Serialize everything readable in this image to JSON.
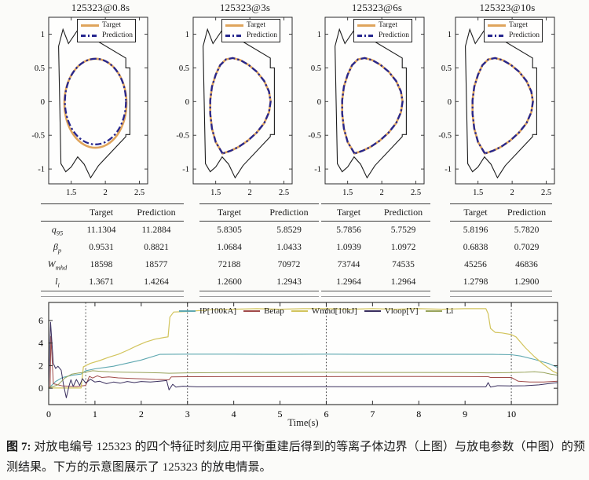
{
  "figure": {
    "caption_prefix": "图 7:",
    "caption_text": " 对放电编号 125323 的四个特征时刻应用平衡重建后得到的等离子体边界（上图）与放电参数（中图）的预测结果。下方的示意图展示了 125323 的放电情景。"
  },
  "colors": {
    "target": "#DFA45C",
    "prediction": "#26268E",
    "vessel": "#1c1c1c",
    "axis": "#2a2a2a",
    "ip": "#5FA8B0",
    "betap": "#A04A48",
    "wmhd": "#D2C45C",
    "vloop": "#3A2F5E",
    "li": "#97A25A"
  },
  "tables": {
    "col_headers": [
      "Target",
      "Prediction"
    ],
    "row_labels": [
      {
        "base": "q",
        "sub": "95"
      },
      {
        "base": "β",
        "sub": "p"
      },
      {
        "base": "W",
        "sub": "mhd"
      },
      {
        "base": "l",
        "sub": "i"
      }
    ],
    "values": [
      {
        "target": [
          "11.1304",
          "0.9531",
          "18598",
          "1.3671"
        ],
        "prediction": [
          "11.2884",
          "0.8821",
          "18577",
          "1.4264"
        ]
      },
      {
        "target": [
          "5.8305",
          "1.0684",
          "72188",
          "1.2600"
        ],
        "prediction": [
          "5.8529",
          "1.0433",
          "70972",
          "1.2943"
        ]
      },
      {
        "target": [
          "5.7856",
          "1.0939",
          "73744",
          "1.2964"
        ],
        "prediction": [
          "5.7529",
          "1.0972",
          "74535",
          "1.2964"
        ]
      },
      {
        "target": [
          "5.8196",
          "0.6838",
          "45256",
          "1.2798"
        ],
        "prediction": [
          "5.7820",
          "0.7029",
          "46836",
          "1.2900"
        ]
      }
    ]
  },
  "chart_data": {
    "equilibria": {
      "type": "line",
      "legend": [
        "Target",
        "Prediction"
      ],
      "axes": {
        "xlim": [
          1.17,
          2.62
        ],
        "ylim": [
          -1.22,
          1.25
        ],
        "x_ticks": [
          "1.5",
          "2",
          "2.5"
        ],
        "x_tick_vals": [
          1.5,
          2.0,
          2.5
        ],
        "y_ticks": [
          "1",
          "0.5",
          "0",
          "-0.5",
          "-1"
        ],
        "y_tick_vals": [
          1,
          0.5,
          0,
          -0.5,
          -1
        ]
      },
      "vessel": [
        [
          1.315,
          0.82
        ],
        [
          1.38,
          1.07
        ],
        [
          1.46,
          0.86
        ],
        [
          1.695,
          1.21
        ],
        [
          1.795,
          0.95
        ],
        [
          2.3,
          0.645
        ],
        [
          2.3,
          0.5
        ],
        [
          2.36,
          0.5
        ],
        [
          2.36,
          -0.49
        ],
        [
          2.3,
          -0.49
        ],
        [
          2.3,
          -0.52
        ],
        [
          1.9,
          -0.95
        ],
        [
          1.785,
          -1.13
        ],
        [
          1.69,
          -0.93
        ],
        [
          1.595,
          -0.82
        ],
        [
          1.5,
          -0.97
        ],
        [
          1.42,
          -1.04
        ],
        [
          1.35,
          -0.92
        ]
      ],
      "shapes": {
        "d": [
          [
            1.6,
            -0.77
          ],
          [
            1.5,
            -0.6
          ],
          [
            1.445,
            -0.4
          ],
          [
            1.42,
            -0.18
          ],
          [
            1.42,
            0.02
          ],
          [
            1.445,
            0.22
          ],
          [
            1.5,
            0.4
          ],
          [
            1.565,
            0.54
          ],
          [
            1.65,
            0.625
          ],
          [
            1.75,
            0.645
          ],
          [
            1.86,
            0.615
          ],
          [
            1.98,
            0.545
          ],
          [
            2.1,
            0.445
          ],
          [
            2.21,
            0.305
          ],
          [
            2.28,
            0.15
          ],
          [
            2.305,
            0.0
          ],
          [
            2.28,
            -0.16
          ],
          [
            2.21,
            -0.32
          ],
          [
            2.1,
            -0.46
          ],
          [
            1.97,
            -0.58
          ],
          [
            1.84,
            -0.67
          ],
          [
            1.72,
            -0.73
          ]
        ]
      },
      "subplots": [
        {
          "title": "125323@0.8s",
          "target": {
            "ellipse": [
              1.855,
              -0.025,
              0.455,
              0.66
            ]
          },
          "prediction": {
            "ellipse": [
              1.855,
              0.0,
              0.447,
              0.635
            ]
          }
        },
        {
          "title": "125323@3s",
          "target": {
            "shape": "d"
          },
          "prediction": {
            "shape": "d"
          }
        },
        {
          "title": "125323@6s",
          "target": {
            "shape": "d"
          },
          "prediction": {
            "shape": "d"
          }
        },
        {
          "title": "125323@10s",
          "target": {
            "shape": "d"
          },
          "prediction": {
            "shape": "d"
          }
        }
      ]
    },
    "timeseries": {
      "type": "line",
      "xlabel": "Time(s)",
      "axes": {
        "xlim": [
          0,
          11.0
        ],
        "ylim": [
          -1.45,
          7.6
        ],
        "x_ticks": [
          "0",
          "1",
          "2",
          "3",
          "4",
          "5",
          "6",
          "7",
          "8",
          "9",
          "10"
        ],
        "x_tick_vals": [
          0,
          1,
          2,
          3,
          4,
          5,
          6,
          7,
          8,
          9,
          10
        ],
        "y_ticks": [
          "0",
          "2",
          "4",
          "6"
        ],
        "y_tick_vals": [
          0,
          2,
          4,
          6
        ]
      },
      "feature_times": [
        0.8,
        3,
        6,
        10
      ],
      "series": [
        {
          "name": "IP[100kA]",
          "color_key": "ip",
          "width": 1.1,
          "points": [
            [
              0,
              0
            ],
            [
              0.15,
              0.6
            ],
            [
              0.3,
              0.95
            ],
            [
              0.5,
              1.15
            ],
            [
              0.7,
              1.25
            ],
            [
              0.8,
              1.55
            ],
            [
              1.0,
              1.72
            ],
            [
              1.4,
              1.95
            ],
            [
              2.0,
              2.5
            ],
            [
              2.4,
              3.0
            ],
            [
              3,
              3.02
            ],
            [
              4,
              3.02
            ],
            [
              5,
              3.0
            ],
            [
              6,
              3.02
            ],
            [
              7,
              3.0
            ],
            [
              8,
              3.0
            ],
            [
              9,
              3.0
            ],
            [
              9.6,
              3.0
            ],
            [
              10,
              2.97
            ],
            [
              10.2,
              2.85
            ],
            [
              10.5,
              2.55
            ],
            [
              10.8,
              2.2
            ],
            [
              11,
              1.85
            ]
          ]
        },
        {
          "name": "Betap",
          "color_key": "betap",
          "width": 1.0,
          "points": [
            [
              0,
              0.08
            ],
            [
              0.03,
              0.1
            ],
            [
              0.05,
              4.6
            ],
            [
              0.1,
              0.4
            ],
            [
              0.3,
              0.2
            ],
            [
              0.6,
              0.15
            ],
            [
              0.8,
              0.25
            ],
            [
              0.88,
              1.05
            ],
            [
              0.95,
              0.9
            ],
            [
              1.05,
              1.1
            ],
            [
              1.15,
              0.95
            ],
            [
              1.3,
              1.0
            ],
            [
              1.5,
              0.92
            ],
            [
              1.7,
              0.88
            ],
            [
              1.9,
              0.85
            ],
            [
              2.1,
              0.82
            ],
            [
              2.3,
              0.78
            ],
            [
              2.5,
              0.76
            ],
            [
              2.6,
              0.74
            ],
            [
              2.65,
              1.0
            ],
            [
              3,
              1.02
            ],
            [
              4,
              1.03
            ],
            [
              5,
              1.03
            ],
            [
              6,
              1.03
            ],
            [
              7,
              1.04
            ],
            [
              8,
              1.04
            ],
            [
              9,
              1.03
            ],
            [
              9.5,
              1.02
            ],
            [
              9.55,
              0.95
            ],
            [
              10,
              0.95
            ],
            [
              10.15,
              0.62
            ],
            [
              10.4,
              0.55
            ],
            [
              10.7,
              0.55
            ],
            [
              11,
              0.62
            ]
          ]
        },
        {
          "name": "Wmhd[10kJ]",
          "color_key": "wmhd",
          "width": 1.2,
          "points": [
            [
              0,
              0.02
            ],
            [
              0.7,
              0.02
            ],
            [
              0.75,
              1.9
            ],
            [
              0.9,
              2.2
            ],
            [
              1.1,
              2.45
            ],
            [
              1.3,
              2.75
            ],
            [
              1.5,
              3.0
            ],
            [
              1.7,
              3.35
            ],
            [
              1.9,
              3.75
            ],
            [
              2.1,
              4.1
            ],
            [
              2.3,
              4.35
            ],
            [
              2.5,
              4.5
            ],
            [
              2.58,
              4.55
            ],
            [
              2.62,
              6.3
            ],
            [
              2.7,
              6.75
            ],
            [
              3,
              6.8
            ],
            [
              3.5,
              6.95
            ],
            [
              4,
              7.0
            ],
            [
              4.5,
              7.05
            ],
            [
              5,
              7.0
            ],
            [
              5.5,
              7.05
            ],
            [
              6,
              7.05
            ],
            [
              6.5,
              7.0
            ],
            [
              7,
              7.05
            ],
            [
              7.5,
              7.0
            ],
            [
              8,
              7.05
            ],
            [
              8.5,
              7.0
            ],
            [
              9,
              7.05
            ],
            [
              9.45,
              7.05
            ],
            [
              9.5,
              6.6
            ],
            [
              9.55,
              5.3
            ],
            [
              9.65,
              4.95
            ],
            [
              9.8,
              4.9
            ],
            [
              10,
              4.75
            ],
            [
              10.1,
              4.55
            ],
            [
              10.3,
              3.6
            ],
            [
              10.5,
              2.8
            ],
            [
              10.7,
              2.1
            ],
            [
              10.9,
              1.5
            ],
            [
              11,
              1.3
            ]
          ]
        },
        {
          "name": "Vloop[V]",
          "color_key": "vloop",
          "width": 1.0,
          "points": [
            [
              0,
              0.1
            ],
            [
              0.04,
              5.85
            ],
            [
              0.1,
              2.2
            ],
            [
              0.15,
              1.75
            ],
            [
              0.2,
              1.95
            ],
            [
              0.27,
              1.6
            ],
            [
              0.32,
              0.3
            ],
            [
              0.38,
              -0.85
            ],
            [
              0.44,
              0.2
            ],
            [
              0.48,
              0.75
            ],
            [
              0.53,
              0.15
            ],
            [
              0.6,
              0.78
            ],
            [
              0.67,
              0.25
            ],
            [
              0.73,
              0.85
            ],
            [
              0.8,
              0.45
            ],
            [
              0.9,
              0.8
            ],
            [
              1.0,
              0.55
            ],
            [
              1.1,
              0.62
            ],
            [
              1.25,
              0.4
            ],
            [
              1.4,
              0.55
            ],
            [
              1.55,
              0.45
            ],
            [
              1.7,
              0.6
            ],
            [
              1.85,
              0.5
            ],
            [
              2.0,
              0.6
            ],
            [
              2.2,
              0.55
            ],
            [
              2.4,
              0.62
            ],
            [
              2.55,
              0.68
            ],
            [
              2.6,
              -0.15
            ],
            [
              2.68,
              0.35
            ],
            [
              2.75,
              0.1
            ],
            [
              2.9,
              0.18
            ],
            [
              3.2,
              0.12
            ],
            [
              4,
              0.14
            ],
            [
              5,
              0.12
            ],
            [
              6,
              0.13
            ],
            [
              7,
              0.12
            ],
            [
              8,
              0.14
            ],
            [
              9,
              0.12
            ],
            [
              9.45,
              0.12
            ],
            [
              9.5,
              0.5
            ],
            [
              9.55,
              0.1
            ],
            [
              9.7,
              0.22
            ],
            [
              10,
              0.2
            ],
            [
              10.3,
              0.22
            ],
            [
              10.6,
              0.3
            ],
            [
              10.8,
              0.4
            ],
            [
              11,
              0.5
            ]
          ]
        },
        {
          "name": "Li",
          "color_key": "li",
          "width": 1.0,
          "points": [
            [
              0,
              0.02
            ],
            [
              0.2,
              0.3
            ],
            [
              0.35,
              0.9
            ],
            [
              0.5,
              1.25
            ],
            [
              0.65,
              1.35
            ],
            [
              0.8,
              1.42
            ],
            [
              0.95,
              1.55
            ],
            [
              1.1,
              1.5
            ],
            [
              1.3,
              1.45
            ],
            [
              1.6,
              1.42
            ],
            [
              2.0,
              1.4
            ],
            [
              2.4,
              1.36
            ],
            [
              2.6,
              1.33
            ],
            [
              3,
              1.36
            ],
            [
              4,
              1.38
            ],
            [
              5,
              1.4
            ],
            [
              6,
              1.41
            ],
            [
              7,
              1.4
            ],
            [
              8,
              1.4
            ],
            [
              9,
              1.39
            ],
            [
              9.5,
              1.36
            ],
            [
              10,
              1.38
            ],
            [
              10.3,
              1.42
            ],
            [
              10.5,
              1.47
            ],
            [
              10.7,
              1.38
            ],
            [
              10.85,
              1.25
            ],
            [
              11,
              1.16
            ]
          ]
        }
      ]
    }
  }
}
